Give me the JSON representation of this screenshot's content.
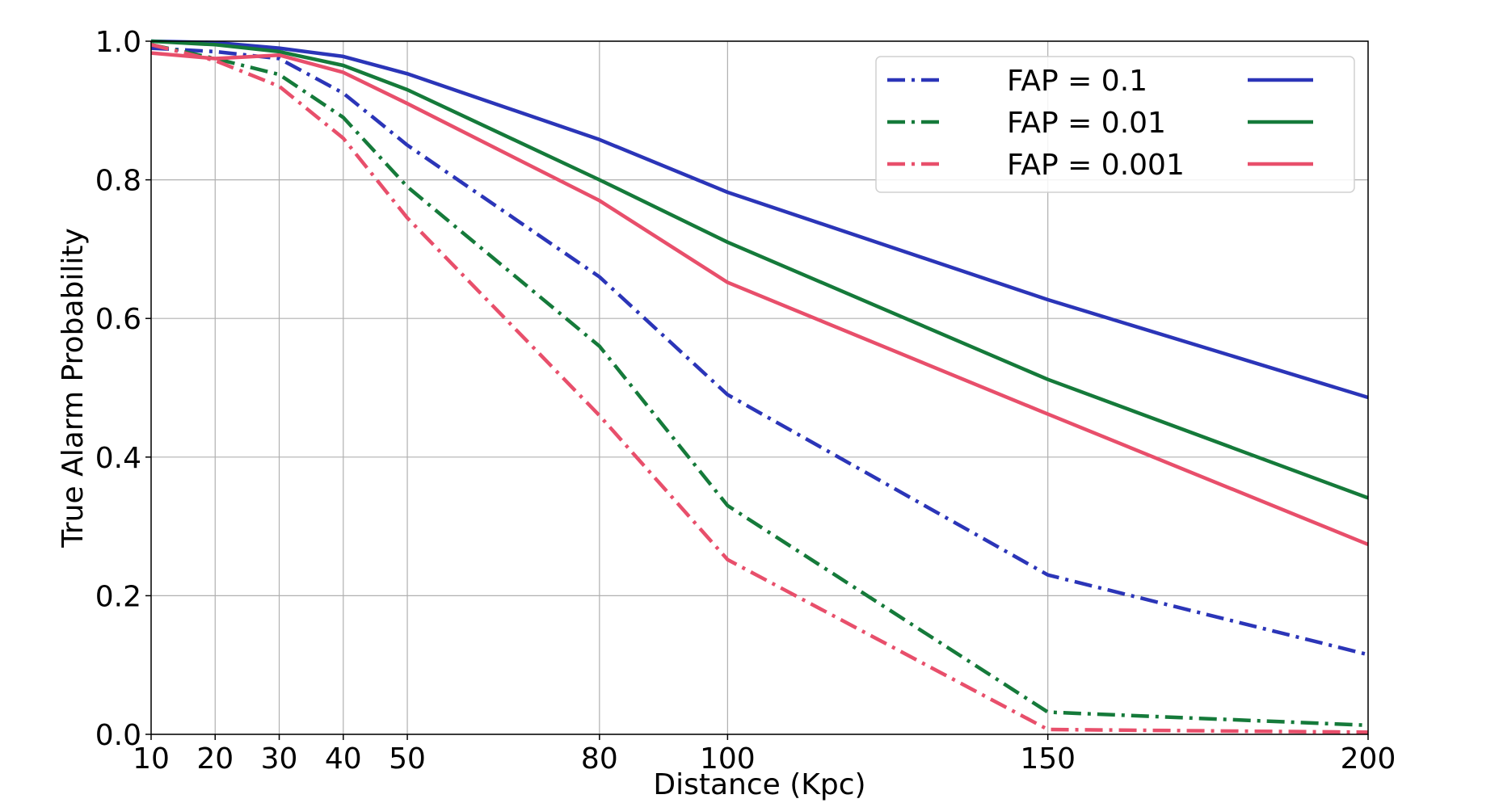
{
  "chart_data": {
    "type": "line",
    "xlabel": "Distance (Kpc)",
    "ylabel": "True Alarm Probability",
    "xlim": [
      10,
      200
    ],
    "ylim": [
      0.0,
      1.0
    ],
    "x_ticks": [
      10,
      20,
      30,
      40,
      50,
      80,
      100,
      150,
      200
    ],
    "y_ticks": [
      0.0,
      0.2,
      0.4,
      0.6,
      0.8,
      1.0
    ],
    "y_tick_labels": [
      "0.0",
      "0.2",
      "0.4",
      "0.6",
      "0.8",
      "1.0"
    ],
    "grid": true,
    "legend_position": "upper-right",
    "legend_labels": [
      "FAP = 0.1",
      "FAP = 0.01",
      "FAP = 0.001"
    ],
    "x": [
      10,
      20,
      30,
      40,
      50,
      80,
      100,
      150,
      200
    ],
    "series": [
      {
        "group": 0,
        "style": "dashdot",
        "color": "#2b35b8",
        "values": [
          0.99,
          0.985,
          0.975,
          0.925,
          0.85,
          0.66,
          0.49,
          0.23,
          0.115
        ]
      },
      {
        "group": 0,
        "style": "solid",
        "color": "#2b35b8",
        "values": [
          1.0,
          0.998,
          0.99,
          0.978,
          0.953,
          0.858,
          0.782,
          0.627,
          0.486
        ]
      },
      {
        "group": 1,
        "style": "dashdot",
        "color": "#157a3a",
        "values": [
          0.995,
          0.975,
          0.952,
          0.89,
          0.79,
          0.56,
          0.33,
          0.032,
          0.013
        ]
      },
      {
        "group": 1,
        "style": "solid",
        "color": "#157a3a",
        "values": [
          1.0,
          0.995,
          0.985,
          0.965,
          0.93,
          0.8,
          0.71,
          0.512,
          0.341
        ]
      },
      {
        "group": 2,
        "style": "dashdot",
        "color": "#e84f6b",
        "values": [
          0.995,
          0.972,
          0.935,
          0.86,
          0.745,
          0.46,
          0.252,
          0.007,
          0.003
        ]
      },
      {
        "group": 2,
        "style": "solid",
        "color": "#e84f6b",
        "values": [
          0.983,
          0.975,
          0.98,
          0.955,
          0.91,
          0.77,
          0.652,
          0.462,
          0.274
        ]
      }
    ]
  }
}
